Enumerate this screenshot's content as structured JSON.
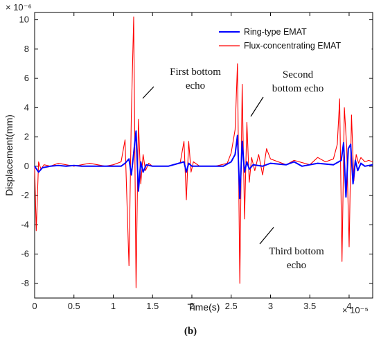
{
  "chart_data": {
    "type": "line",
    "xlabel": "Time(s)",
    "ylabel": "Displacement(mm)",
    "x_exponent": "× 10⁻⁵",
    "y_exponent": "× 10⁻⁶",
    "xlim": [
      0,
      4.3
    ],
    "ylim": [
      -9,
      10.5
    ],
    "x_ticks": [
      0,
      0.5,
      1,
      1.5,
      2,
      2.5,
      3,
      3.5,
      4
    ],
    "y_ticks": [
      -8,
      -6,
      -4,
      -2,
      0,
      2,
      4,
      6,
      8,
      10
    ],
    "grid": false,
    "legend_position": "top-right",
    "series": [
      {
        "name": "Ring-type EMAT",
        "color": "#0000ff",
        "x": [
          0,
          0.05,
          0.1,
          0.2,
          0.3,
          0.4,
          0.5,
          0.6,
          0.8,
          1.0,
          1.1,
          1.15,
          1.2,
          1.23,
          1.26,
          1.29,
          1.32,
          1.35,
          1.38,
          1.42,
          1.5,
          1.7,
          1.9,
          1.93,
          1.96,
          2.0,
          2.05,
          2.2,
          2.4,
          2.5,
          2.55,
          2.58,
          2.61,
          2.64,
          2.67,
          2.7,
          2.73,
          2.78,
          2.9,
          3.0,
          3.2,
          3.3,
          3.4,
          3.6,
          3.8,
          3.9,
          3.93,
          3.96,
          3.99,
          4.02,
          4.05,
          4.08,
          4.11,
          4.15,
          4.2,
          4.3
        ],
        "y": [
          0,
          -0.4,
          -0.1,
          0,
          0.05,
          0,
          0.05,
          0,
          0,
          0,
          0,
          0.2,
          0.5,
          -0.6,
          0.9,
          2.4,
          -1.7,
          0.3,
          -0.4,
          0.1,
          0,
          0,
          0.3,
          -0.4,
          0.2,
          0,
          0,
          0,
          0,
          0.3,
          0.8,
          2.1,
          -2.2,
          1.7,
          -0.4,
          0.3,
          -0.2,
          0.1,
          0,
          0.2,
          0.1,
          0.3,
          0,
          0.2,
          0.1,
          0.4,
          1.6,
          -2.1,
          1.2,
          1.5,
          -1.2,
          0.4,
          -0.3,
          0.2,
          0,
          0.1
        ]
      },
      {
        "name": "Flux-concentrating EMAT",
        "color": "#ff0000",
        "x": [
          0,
          0.02,
          0.05,
          0.08,
          0.12,
          0.2,
          0.3,
          0.5,
          0.7,
          0.9,
          1.0,
          1.1,
          1.15,
          1.2,
          1.23,
          1.26,
          1.29,
          1.32,
          1.35,
          1.38,
          1.41,
          1.45,
          1.5,
          1.7,
          1.85,
          1.9,
          1.93,
          1.96,
          1.99,
          2.02,
          2.1,
          2.3,
          2.45,
          2.5,
          2.55,
          2.58,
          2.61,
          2.64,
          2.67,
          2.7,
          2.73,
          2.76,
          2.8,
          2.85,
          2.9,
          2.95,
          3.0,
          3.1,
          3.2,
          3.3,
          3.5,
          3.6,
          3.7,
          3.8,
          3.85,
          3.88,
          3.91,
          3.94,
          3.97,
          4.0,
          4.03,
          4.06,
          4.09,
          4.12,
          4.15,
          4.2,
          4.25,
          4.3
        ],
        "y": [
          0,
          -4.4,
          0.3,
          -0.2,
          0.1,
          0,
          0.2,
          0,
          0.2,
          0,
          0.1,
          0.3,
          1.8,
          -6.8,
          3.5,
          10.2,
          -8.3,
          3.2,
          -1.2,
          0.8,
          -0.3,
          0.2,
          0,
          0,
          0.2,
          1.7,
          -2.3,
          1.7,
          -0.4,
          0.3,
          0,
          0,
          0.2,
          0.9,
          2.5,
          7.0,
          -8.0,
          5.6,
          -3.6,
          3.0,
          -1.1,
          0.6,
          -0.3,
          0.8,
          -0.6,
          1.2,
          0.5,
          0.3,
          0.1,
          0.4,
          0.1,
          0.6,
          0.3,
          0.5,
          1.5,
          4.6,
          -6.5,
          4.0,
          1.3,
          -5.5,
          3.5,
          -1.0,
          0.8,
          0.2,
          0.6,
          0.3,
          0.4,
          0.3
        ]
      }
    ],
    "annotations": [
      {
        "lines": [
          "First bottom",
          "echo"
        ]
      },
      {
        "lines": [
          "Second",
          "bottom echo"
        ]
      },
      {
        "lines": [
          "Third bottom",
          "echo"
        ]
      }
    ],
    "panel_label": "(b)"
  }
}
